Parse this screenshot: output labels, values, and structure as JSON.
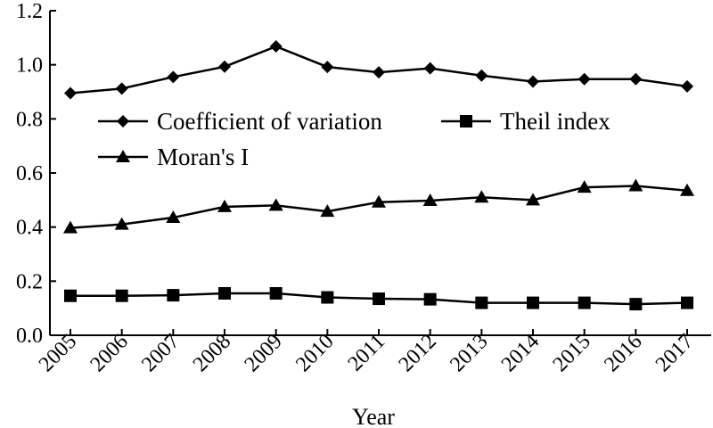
{
  "chart_data": {
    "type": "line",
    "xlabel": "Year",
    "ylabel": "",
    "ylim": [
      0,
      1.2
    ],
    "yticks": [
      "0.0",
      "0.2",
      "0.4",
      "0.6",
      "0.8",
      "1.0",
      "1.2"
    ],
    "categories": [
      "2005",
      "2006",
      "2007",
      "2008",
      "2009",
      "2010",
      "2011",
      "2012",
      "2013",
      "2014",
      "2015",
      "2016",
      "2017"
    ],
    "legend_position": "center-left",
    "grid": false,
    "series": [
      {
        "name": "Coefficient of variation",
        "marker": "diamond",
        "values": [
          0.895,
          0.912,
          0.955,
          0.993,
          1.068,
          0.992,
          0.972,
          0.987,
          0.96,
          0.938,
          0.947,
          0.947,
          0.92
        ]
      },
      {
        "name": "Theil index",
        "marker": "square",
        "values": [
          0.146,
          0.146,
          0.148,
          0.155,
          0.155,
          0.14,
          0.135,
          0.133,
          0.12,
          0.12,
          0.12,
          0.115,
          0.12
        ]
      },
      {
        "name": "Moran's I",
        "marker": "triangle",
        "values": [
          0.397,
          0.41,
          0.435,
          0.475,
          0.48,
          0.458,
          0.492,
          0.498,
          0.51,
          0.5,
          0.547,
          0.552,
          0.535
        ]
      }
    ]
  }
}
